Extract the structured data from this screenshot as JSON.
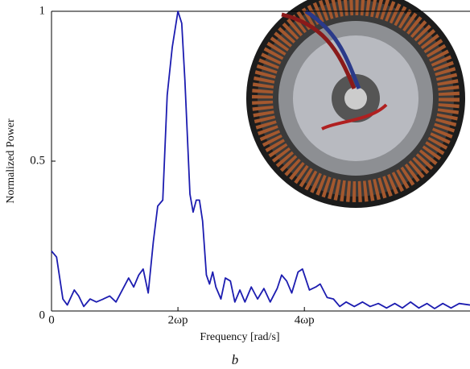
{
  "chart_data": {
    "type": "line",
    "x_label": "Frequency [rad/s]",
    "y_label": "Normalized Power",
    "caption": "b",
    "xlim": [
      0,
      6.62
    ],
    "ylim": [
      0,
      1
    ],
    "xticks": [
      0,
      {
        "value": 2,
        "label": "2ωp"
      },
      {
        "value": 4,
        "label": "4ωp"
      }
    ],
    "yticks": [
      0,
      0.5,
      1
    ],
    "series": [
      {
        "color": "#1c1cb0",
        "x": [
          0,
          0.08,
          0.18,
          0.25,
          0.36,
          0.43,
          0.51,
          0.61,
          0.71,
          0.82,
          0.92,
          1.02,
          1.12,
          1.22,
          1.3,
          1.38,
          1.45,
          1.53,
          1.61,
          1.68,
          1.76,
          1.83,
          1.91,
          2.0,
          2.06,
          2.11,
          2.19,
          2.24,
          2.29,
          2.34,
          2.39,
          2.45,
          2.5,
          2.55,
          2.6,
          2.68,
          2.75,
          2.83,
          2.9,
          2.98,
          3.06,
          3.16,
          3.26,
          3.36,
          3.46,
          3.57,
          3.64,
          3.72,
          3.8,
          3.9,
          3.97,
          4.08,
          4.18,
          4.25,
          4.36,
          4.46,
          4.56,
          4.66,
          4.79,
          4.92,
          5.04,
          5.17,
          5.3,
          5.43,
          5.55,
          5.68,
          5.81,
          5.94,
          6.06,
          6.19,
          6.32,
          6.45,
          6.62
        ],
        "values": [
          0.2,
          0.18,
          0.04,
          0.02,
          0.07,
          0.05,
          0.015,
          0.04,
          0.03,
          0.04,
          0.05,
          0.03,
          0.07,
          0.11,
          0.08,
          0.12,
          0.14,
          0.06,
          0.23,
          0.35,
          0.37,
          0.72,
          0.88,
          1.0,
          0.96,
          0.77,
          0.39,
          0.33,
          0.37,
          0.37,
          0.3,
          0.12,
          0.09,
          0.13,
          0.08,
          0.04,
          0.11,
          0.1,
          0.03,
          0.07,
          0.03,
          0.08,
          0.04,
          0.075,
          0.03,
          0.075,
          0.12,
          0.1,
          0.06,
          0.13,
          0.14,
          0.07,
          0.08,
          0.09,
          0.045,
          0.04,
          0.015,
          0.03,
          0.015,
          0.03,
          0.015,
          0.025,
          0.01,
          0.025,
          0.01,
          0.03,
          0.01,
          0.025,
          0.008,
          0.025,
          0.01,
          0.025,
          0.02
        ]
      }
    ]
  }
}
